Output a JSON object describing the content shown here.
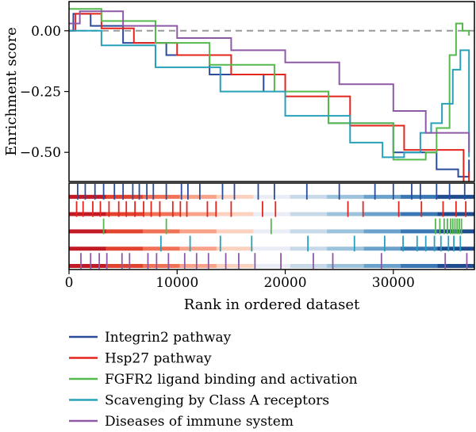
{
  "chart_data": {
    "type": "line",
    "xlabel": "Rank in ordered dataset",
    "ylabel": "Enrichment score",
    "xlim": [
      0,
      37500
    ],
    "ylim": [
      -0.62,
      0.12
    ],
    "x_ticks": [
      0,
      10000,
      20000,
      30000
    ],
    "x_tick_labels": [
      "0",
      "10000",
      "20000",
      "30000"
    ],
    "y_ticks": [
      0.0,
      -0.25,
      -0.5
    ],
    "y_tick_labels": [
      "0.00",
      "−0.25",
      "−0.50"
    ],
    "zero_line": true,
    "legend_position": "bottom",
    "series": [
      {
        "name": "Integrin2 pathway",
        "color": "#2b4c9b",
        "points": [
          [
            0,
            0.0
          ],
          [
            400,
            0.07
          ],
          [
            2000,
            0.02
          ],
          [
            5000,
            -0.05
          ],
          [
            9000,
            -0.1
          ],
          [
            13000,
            -0.18
          ],
          [
            18000,
            -0.25
          ],
          [
            24000,
            -0.38
          ],
          [
            30000,
            -0.5
          ],
          [
            34000,
            -0.57
          ],
          [
            36000,
            -0.6
          ],
          [
            37000,
            -0.53
          ]
        ],
        "hits": [
          800,
          1500,
          2400,
          3200,
          4200,
          5000,
          5900,
          6500,
          7200,
          7800,
          9000,
          10400,
          11000,
          12100,
          14200,
          15300,
          17500,
          19000,
          22000,
          25000,
          28300,
          30000,
          31700,
          32500,
          34000,
          35200,
          36600
        ]
      },
      {
        "name": "Hsp27 pathway",
        "color": "#e3251e",
        "points": [
          [
            0,
            0.0
          ],
          [
            600,
            0.07
          ],
          [
            3000,
            0.01
          ],
          [
            6000,
            -0.05
          ],
          [
            10000,
            -0.1
          ],
          [
            15000,
            -0.18
          ],
          [
            20000,
            -0.27
          ],
          [
            26000,
            -0.39
          ],
          [
            31000,
            -0.49
          ],
          [
            36500,
            -0.7
          ],
          [
            37000,
            -0.58
          ]
        ],
        "hits": [
          700,
          1300,
          2200,
          2900,
          3700,
          4600,
          5300,
          6100,
          6900,
          7600,
          8400,
          9600,
          10300,
          10900,
          12800,
          13600,
          15000,
          17900,
          19100,
          25800,
          27200,
          30500,
          32600,
          34600,
          35800,
          36700
        ]
      },
      {
        "name": "FGFR2 ligand binding and activation",
        "color": "#55b94e",
        "points": [
          [
            0,
            0.09
          ],
          [
            3000,
            0.04
          ],
          [
            8000,
            -0.05
          ],
          [
            13000,
            -0.14
          ],
          [
            19000,
            -0.25
          ],
          [
            24000,
            -0.38
          ],
          [
            30000,
            -0.53
          ],
          [
            33000,
            -0.5
          ],
          [
            34000,
            -0.4
          ],
          [
            35200,
            -0.1
          ],
          [
            35800,
            0.03
          ],
          [
            36400,
            0.0
          ],
          [
            37000,
            -0.02
          ]
        ],
        "hits": [
          3200,
          9000,
          18700,
          33900,
          34300,
          34700,
          35000,
          35300,
          35500,
          35700,
          35900,
          36100,
          36300
        ]
      },
      {
        "name": "Scavenging by Class A receptors",
        "color": "#27a0b9",
        "points": [
          [
            0,
            0.0
          ],
          [
            3000,
            -0.06
          ],
          [
            8000,
            -0.15
          ],
          [
            14000,
            -0.25
          ],
          [
            20000,
            -0.35
          ],
          [
            26000,
            -0.46
          ],
          [
            29000,
            -0.52
          ],
          [
            31000,
            -0.5
          ],
          [
            32500,
            -0.42
          ],
          [
            33500,
            -0.38
          ],
          [
            34500,
            -0.3
          ],
          [
            35500,
            -0.16
          ],
          [
            36200,
            -0.08
          ],
          [
            37000,
            -0.52
          ]
        ],
        "hits": [
          8500,
          11200,
          14000,
          16900,
          22100,
          26400,
          29200,
          30900,
          32200,
          33000,
          33800,
          34400,
          35100,
          35600,
          36200
        ]
      },
      {
        "name": "Diseases of immune system",
        "color": "#8e5aa6",
        "points": [
          [
            0,
            0.03
          ],
          [
            1000,
            0.08
          ],
          [
            5000,
            0.02
          ],
          [
            10000,
            -0.03
          ],
          [
            15000,
            -0.08
          ],
          [
            20000,
            -0.13
          ],
          [
            25000,
            -0.22
          ],
          [
            30000,
            -0.33
          ],
          [
            33000,
            -0.42
          ],
          [
            37000,
            -0.5
          ]
        ],
        "hits": [
          1100,
          2000,
          2800,
          3500,
          4900,
          5600,
          7300,
          8100,
          9200,
          10700,
          11800,
          12900,
          14500,
          15700,
          17200,
          19600,
          22600,
          24400,
          28900,
          34800,
          36800
        ]
      }
    ]
  }
}
